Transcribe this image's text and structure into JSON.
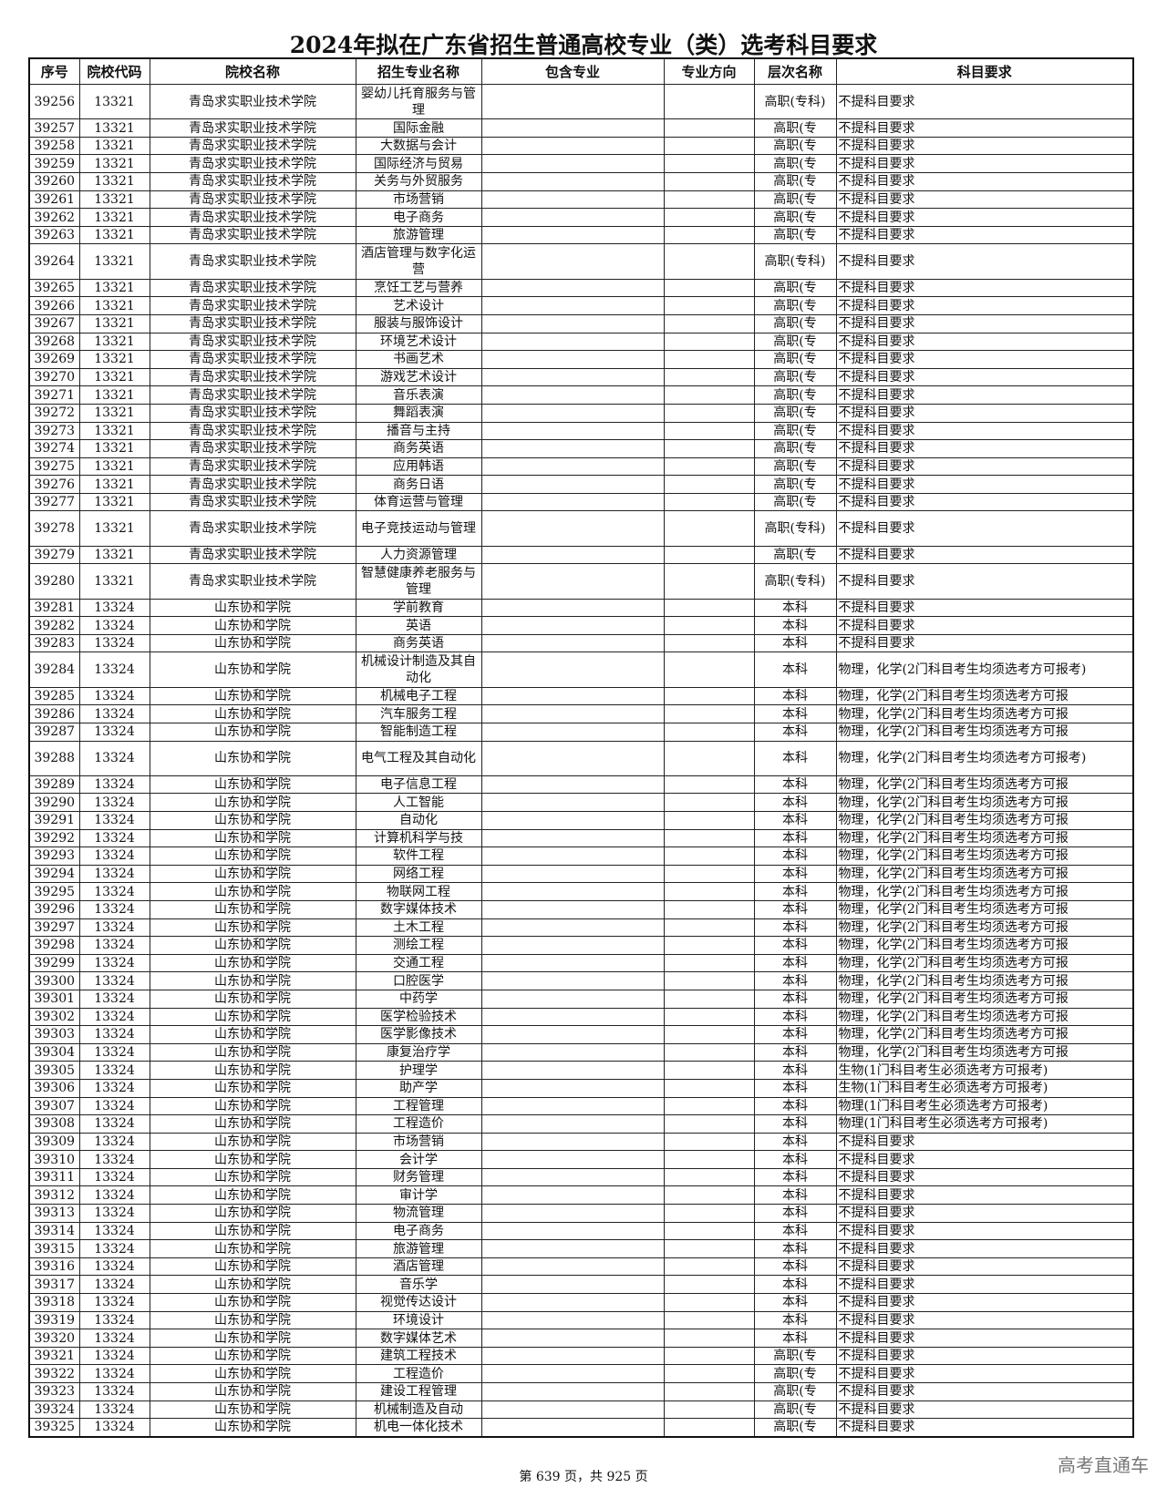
{
  "title": "2024年拟在广东省招生普通高校专业（类）选考科目要求",
  "headers": [
    "序号",
    "院校代码",
    "院校名称",
    "招生专业名称",
    "包含专业",
    "专业方向",
    "层次名称",
    "科目要求"
  ],
  "rows": [
    [
      "39256",
      "13321",
      "青岛求实职业技术学院",
      "婴幼儿托育服务与管理",
      "",
      "",
      "高职(专科)",
      "不提科目要求",
      true
    ],
    [
      "39257",
      "13321",
      "青岛求实职业技术学院",
      "国际金融",
      "",
      "",
      "高职(专",
      "不提科目要求",
      false
    ],
    [
      "39258",
      "13321",
      "青岛求实职业技术学院",
      "大数据与会计",
      "",
      "",
      "高职(专",
      "不提科目要求",
      false
    ],
    [
      "39259",
      "13321",
      "青岛求实职业技术学院",
      "国际经济与贸易",
      "",
      "",
      "高职(专",
      "不提科目要求",
      false
    ],
    [
      "39260",
      "13321",
      "青岛求实职业技术学院",
      "关务与外贸服务",
      "",
      "",
      "高职(专",
      "不提科目要求",
      false
    ],
    [
      "39261",
      "13321",
      "青岛求实职业技术学院",
      "市场营销",
      "",
      "",
      "高职(专",
      "不提科目要求",
      false
    ],
    [
      "39262",
      "13321",
      "青岛求实职业技术学院",
      "电子商务",
      "",
      "",
      "高职(专",
      "不提科目要求",
      false
    ],
    [
      "39263",
      "13321",
      "青岛求实职业技术学院",
      "旅游管理",
      "",
      "",
      "高职(专",
      "不提科目要求",
      false
    ],
    [
      "39264",
      "13321",
      "青岛求实职业技术学院",
      "酒店管理与数字化运营",
      "",
      "",
      "高职(专科)",
      "不提科目要求",
      true
    ],
    [
      "39265",
      "13321",
      "青岛求实职业技术学院",
      "烹饪工艺与营养",
      "",
      "",
      "高职(专",
      "不提科目要求",
      false
    ],
    [
      "39266",
      "13321",
      "青岛求实职业技术学院",
      "艺术设计",
      "",
      "",
      "高职(专",
      "不提科目要求",
      false
    ],
    [
      "39267",
      "13321",
      "青岛求实职业技术学院",
      "服装与服饰设计",
      "",
      "",
      "高职(专",
      "不提科目要求",
      false
    ],
    [
      "39268",
      "13321",
      "青岛求实职业技术学院",
      "环境艺术设计",
      "",
      "",
      "高职(专",
      "不提科目要求",
      false
    ],
    [
      "39269",
      "13321",
      "青岛求实职业技术学院",
      "书画艺术",
      "",
      "",
      "高职(专",
      "不提科目要求",
      false
    ],
    [
      "39270",
      "13321",
      "青岛求实职业技术学院",
      "游戏艺术设计",
      "",
      "",
      "高职(专",
      "不提科目要求",
      false
    ],
    [
      "39271",
      "13321",
      "青岛求实职业技术学院",
      "音乐表演",
      "",
      "",
      "高职(专",
      "不提科目要求",
      false
    ],
    [
      "39272",
      "13321",
      "青岛求实职业技术学院",
      "舞蹈表演",
      "",
      "",
      "高职(专",
      "不提科目要求",
      false
    ],
    [
      "39273",
      "13321",
      "青岛求实职业技术学院",
      "播音与主持",
      "",
      "",
      "高职(专",
      "不提科目要求",
      false
    ],
    [
      "39274",
      "13321",
      "青岛求实职业技术学院",
      "商务英语",
      "",
      "",
      "高职(专",
      "不提科目要求",
      false
    ],
    [
      "39275",
      "13321",
      "青岛求实职业技术学院",
      "应用韩语",
      "",
      "",
      "高职(专",
      "不提科目要求",
      false
    ],
    [
      "39276",
      "13321",
      "青岛求实职业技术学院",
      "商务日语",
      "",
      "",
      "高职(专",
      "不提科目要求",
      false
    ],
    [
      "39277",
      "13321",
      "青岛求实职业技术学院",
      "体育运营与管理",
      "",
      "",
      "高职(专",
      "不提科目要求",
      false
    ],
    [
      "39278",
      "13321",
      "青岛求实职业技术学院",
      "电子竞技运动与管理",
      "",
      "",
      "高职(专科)",
      "不提科目要求",
      true
    ],
    [
      "39279",
      "13321",
      "青岛求实职业技术学院",
      "人力资源管理",
      "",
      "",
      "高职(专",
      "不提科目要求",
      false
    ],
    [
      "39280",
      "13321",
      "青岛求实职业技术学院",
      "智慧健康养老服务与管理",
      "",
      "",
      "高职(专科)",
      "不提科目要求",
      true
    ],
    [
      "39281",
      "13324",
      "山东协和学院",
      "学前教育",
      "",
      "",
      "本科",
      "不提科目要求",
      false
    ],
    [
      "39282",
      "13324",
      "山东协和学院",
      "英语",
      "",
      "",
      "本科",
      "不提科目要求",
      false
    ],
    [
      "39283",
      "13324",
      "山东协和学院",
      "商务英语",
      "",
      "",
      "本科",
      "不提科目要求",
      false
    ],
    [
      "39284",
      "13324",
      "山东协和学院",
      "机械设计制造及其自动化",
      "",
      "",
      "本科",
      "物理，化学(2门科目考生均须选考方可报考)",
      true
    ],
    [
      "39285",
      "13324",
      "山东协和学院",
      "机械电子工程",
      "",
      "",
      "本科",
      "物理，化学(2门科目考生均须选考方可报",
      false
    ],
    [
      "39286",
      "13324",
      "山东协和学院",
      "汽车服务工程",
      "",
      "",
      "本科",
      "物理，化学(2门科目考生均须选考方可报",
      false
    ],
    [
      "39287",
      "13324",
      "山东协和学院",
      "智能制造工程",
      "",
      "",
      "本科",
      "物理，化学(2门科目考生均须选考方可报",
      false
    ],
    [
      "39288",
      "13324",
      "山东协和学院",
      "电气工程及其自动化",
      "",
      "",
      "本科",
      "物理，化学(2门科目考生均须选考方可报考)",
      true
    ],
    [
      "39289",
      "13324",
      "山东协和学院",
      "电子信息工程",
      "",
      "",
      "本科",
      "物理，化学(2门科目考生均须选考方可报",
      false
    ],
    [
      "39290",
      "13324",
      "山东协和学院",
      "人工智能",
      "",
      "",
      "本科",
      "物理，化学(2门科目考生均须选考方可报",
      false
    ],
    [
      "39291",
      "13324",
      "山东协和学院",
      "自动化",
      "",
      "",
      "本科",
      "物理，化学(2门科目考生均须选考方可报",
      false
    ],
    [
      "39292",
      "13324",
      "山东协和学院",
      "计算机科学与技",
      "",
      "",
      "本科",
      "物理，化学(2门科目考生均须选考方可报",
      false
    ],
    [
      "39293",
      "13324",
      "山东协和学院",
      "软件工程",
      "",
      "",
      "本科",
      "物理，化学(2门科目考生均须选考方可报",
      false
    ],
    [
      "39294",
      "13324",
      "山东协和学院",
      "网络工程",
      "",
      "",
      "本科",
      "物理，化学(2门科目考生均须选考方可报",
      false
    ],
    [
      "39295",
      "13324",
      "山东协和学院",
      "物联网工程",
      "",
      "",
      "本科",
      "物理，化学(2门科目考生均须选考方可报",
      false
    ],
    [
      "39296",
      "13324",
      "山东协和学院",
      "数字媒体技术",
      "",
      "",
      "本科",
      "物理，化学(2门科目考生均须选考方可报",
      false
    ],
    [
      "39297",
      "13324",
      "山东协和学院",
      "土木工程",
      "",
      "",
      "本科",
      "物理，化学(2门科目考生均须选考方可报",
      false
    ],
    [
      "39298",
      "13324",
      "山东协和学院",
      "测绘工程",
      "",
      "",
      "本科",
      "物理，化学(2门科目考生均须选考方可报",
      false
    ],
    [
      "39299",
      "13324",
      "山东协和学院",
      "交通工程",
      "",
      "",
      "本科",
      "物理，化学(2门科目考生均须选考方可报",
      false
    ],
    [
      "39300",
      "13324",
      "山东协和学院",
      "口腔医学",
      "",
      "",
      "本科",
      "物理，化学(2门科目考生均须选考方可报",
      false
    ],
    [
      "39301",
      "13324",
      "山东协和学院",
      "中药学",
      "",
      "",
      "本科",
      "物理，化学(2门科目考生均须选考方可报",
      false
    ],
    [
      "39302",
      "13324",
      "山东协和学院",
      "医学检验技术",
      "",
      "",
      "本科",
      "物理，化学(2门科目考生均须选考方可报",
      false
    ],
    [
      "39303",
      "13324",
      "山东协和学院",
      "医学影像技术",
      "",
      "",
      "本科",
      "物理，化学(2门科目考生均须选考方可报",
      false
    ],
    [
      "39304",
      "13324",
      "山东协和学院",
      "康复治疗学",
      "",
      "",
      "本科",
      "物理，化学(2门科目考生均须选考方可报",
      false
    ],
    [
      "39305",
      "13324",
      "山东协和学院",
      "护理学",
      "",
      "",
      "本科",
      "生物(1门科目考生必须选考方可报考)",
      false
    ],
    [
      "39306",
      "13324",
      "山东协和学院",
      "助产学",
      "",
      "",
      "本科",
      "生物(1门科目考生必须选考方可报考)",
      false
    ],
    [
      "39307",
      "13324",
      "山东协和学院",
      "工程管理",
      "",
      "",
      "本科",
      "物理(1门科目考生必须选考方可报考)",
      false
    ],
    [
      "39308",
      "13324",
      "山东协和学院",
      "工程造价",
      "",
      "",
      "本科",
      "物理(1门科目考生必须选考方可报考)",
      false
    ],
    [
      "39309",
      "13324",
      "山东协和学院",
      "市场营销",
      "",
      "",
      "本科",
      "不提科目要求",
      false
    ],
    [
      "39310",
      "13324",
      "山东协和学院",
      "会计学",
      "",
      "",
      "本科",
      "不提科目要求",
      false
    ],
    [
      "39311",
      "13324",
      "山东协和学院",
      "财务管理",
      "",
      "",
      "本科",
      "不提科目要求",
      false
    ],
    [
      "39312",
      "13324",
      "山东协和学院",
      "审计学",
      "",
      "",
      "本科",
      "不提科目要求",
      false
    ],
    [
      "39313",
      "13324",
      "山东协和学院",
      "物流管理",
      "",
      "",
      "本科",
      "不提科目要求",
      false
    ],
    [
      "39314",
      "13324",
      "山东协和学院",
      "电子商务",
      "",
      "",
      "本科",
      "不提科目要求",
      false
    ],
    [
      "39315",
      "13324",
      "山东协和学院",
      "旅游管理",
      "",
      "",
      "本科",
      "不提科目要求",
      false
    ],
    [
      "39316",
      "13324",
      "山东协和学院",
      "酒店管理",
      "",
      "",
      "本科",
      "不提科目要求",
      false
    ],
    [
      "39317",
      "13324",
      "山东协和学院",
      "音乐学",
      "",
      "",
      "本科",
      "不提科目要求",
      false
    ],
    [
      "39318",
      "13324",
      "山东协和学院",
      "视觉传达设计",
      "",
      "",
      "本科",
      "不提科目要求",
      false
    ],
    [
      "39319",
      "13324",
      "山东协和学院",
      "环境设计",
      "",
      "",
      "本科",
      "不提科目要求",
      false
    ],
    [
      "39320",
      "13324",
      "山东协和学院",
      "数字媒体艺术",
      "",
      "",
      "本科",
      "不提科目要求",
      false
    ],
    [
      "39321",
      "13324",
      "山东协和学院",
      "建筑工程技术",
      "",
      "",
      "高职(专",
      "不提科目要求",
      false
    ],
    [
      "39322",
      "13324",
      "山东协和学院",
      "工程造价",
      "",
      "",
      "高职(专",
      "不提科目要求",
      false
    ],
    [
      "39323",
      "13324",
      "山东协和学院",
      "建设工程管理",
      "",
      "",
      "高职(专",
      "不提科目要求",
      false
    ],
    [
      "39324",
      "13324",
      "山东协和学院",
      "机械制造及自动",
      "",
      "",
      "高职(专",
      "不提科目要求",
      false
    ],
    [
      "39325",
      "13324",
      "山东协和学院",
      "机电一体化技术",
      "",
      "",
      "高职(专",
      "不提科目要求",
      false
    ]
  ],
  "footer": "第 639 页，共 925 页",
  "watermark": "高考直通车"
}
